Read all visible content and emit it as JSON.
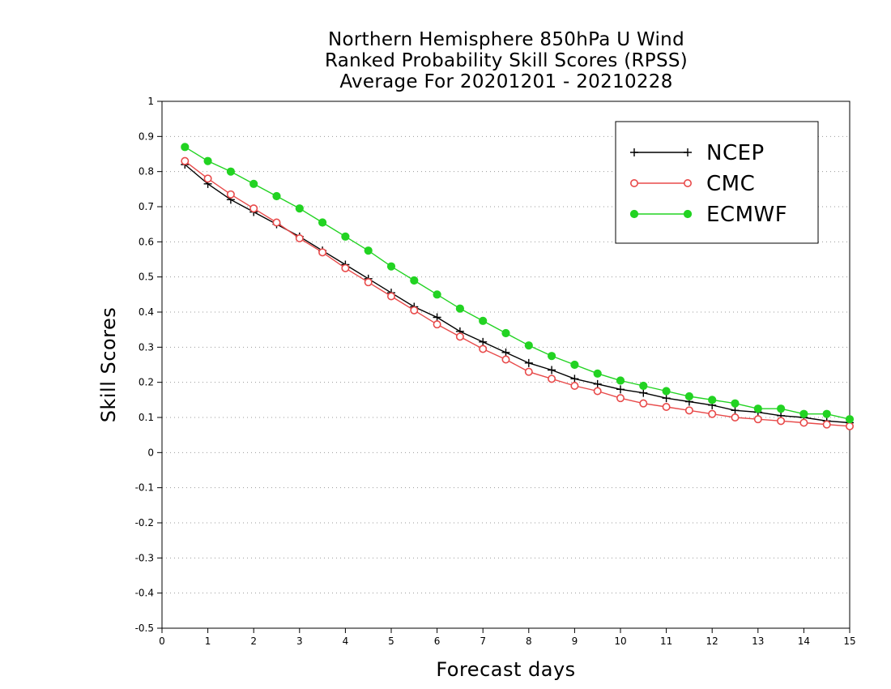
{
  "chart_data": {
    "type": "line",
    "title": [
      "Northern Hemisphere 850hPa U Wind",
      "Ranked Probability Skill Scores (RPSS)",
      "Average For 20201201 - 20210228"
    ],
    "xlabel": "Forecast days",
    "ylabel": "Skill Scores",
    "xlim": [
      0,
      15
    ],
    "ylim": [
      -0.5,
      1
    ],
    "x_ticks": [
      "0",
      "1",
      "2",
      "3",
      "4",
      "5",
      "6",
      "7",
      "8",
      "9",
      "10",
      "11",
      "12",
      "13",
      "14",
      "15"
    ],
    "y_ticks": [
      "1",
      "0.9",
      "0.8",
      "0.7",
      "0.6",
      "0.5",
      "0.4",
      "0.3",
      "0.2",
      "0.1",
      "0",
      "-0.1",
      "-0.2",
      "-0.3",
      "-0.4",
      "-0.5"
    ],
    "grid": "horizontal dotted",
    "legend_position": "top-right",
    "x": [
      0.5,
      1,
      1.5,
      2,
      2.5,
      3,
      3.5,
      4,
      4.5,
      5,
      5.5,
      6,
      6.5,
      7,
      7.5,
      8,
      8.5,
      9,
      9.5,
      10,
      10.5,
      11,
      11.5,
      12,
      12.5,
      13,
      13.5,
      14,
      14.5,
      15
    ],
    "series": [
      {
        "name": "NCEP",
        "color": "#000000",
        "marker": "plus",
        "values": [
          0.82,
          0.765,
          0.72,
          0.685,
          0.65,
          0.615,
          0.575,
          0.535,
          0.495,
          0.455,
          0.415,
          0.385,
          0.345,
          0.315,
          0.285,
          0.255,
          0.235,
          0.21,
          0.195,
          0.18,
          0.17,
          0.155,
          0.145,
          0.135,
          0.12,
          0.115,
          0.105,
          0.1,
          0.09,
          0.085
        ]
      },
      {
        "name": "CMC",
        "color": "#e84a4a",
        "marker": "open-circle",
        "values": [
          0.83,
          0.78,
          0.735,
          0.695,
          0.655,
          0.61,
          0.57,
          0.525,
          0.485,
          0.445,
          0.405,
          0.365,
          0.33,
          0.295,
          0.265,
          0.23,
          0.21,
          0.19,
          0.175,
          0.155,
          0.14,
          0.13,
          0.12,
          0.11,
          0.1,
          0.095,
          0.09,
          0.085,
          0.08,
          0.075
        ]
      },
      {
        "name": "ECMWF",
        "color": "#22d322",
        "marker": "filled-circle",
        "values": [
          0.87,
          0.83,
          0.8,
          0.765,
          0.73,
          0.695,
          0.655,
          0.615,
          0.575,
          0.53,
          0.49,
          0.45,
          0.41,
          0.375,
          0.34,
          0.305,
          0.275,
          0.25,
          0.225,
          0.205,
          0.19,
          0.175,
          0.16,
          0.15,
          0.14,
          0.125,
          0.125,
          0.11,
          0.11,
          0.095
        ]
      }
    ]
  }
}
